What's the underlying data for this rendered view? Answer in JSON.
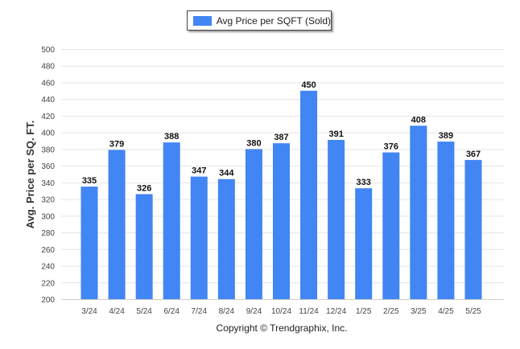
{
  "chart_data": {
    "type": "bar",
    "categories": [
      "3/24",
      "4/24",
      "5/24",
      "6/24",
      "7/24",
      "8/24",
      "9/24",
      "10/24",
      "11/24",
      "12/24",
      "1/25",
      "2/25",
      "3/25",
      "4/25",
      "5/25"
    ],
    "series": [
      {
        "name": "Avg Price per SQFT (Sold)",
        "values": [
          335,
          379,
          326,
          388,
          347,
          344,
          380,
          387,
          450,
          391,
          333,
          376,
          408,
          389,
          367
        ]
      }
    ],
    "ylabel": "Avg. Price per SQ. FT.",
    "xlabel": "",
    "ylim": [
      200,
      500
    ],
    "yticks": [
      200,
      220,
      240,
      260,
      280,
      300,
      320,
      340,
      360,
      380,
      400,
      420,
      440,
      460,
      480,
      500
    ],
    "grid": true,
    "legend_position": "top-center",
    "colors": {
      "bar": "#4285f4",
      "grid": "#e4e4e4",
      "axis": "#cccccc"
    }
  },
  "legend": {
    "label": "Avg Price per SQFT (Sold)"
  },
  "footer": {
    "copyright": "Copyright © Trendgraphix, Inc."
  }
}
